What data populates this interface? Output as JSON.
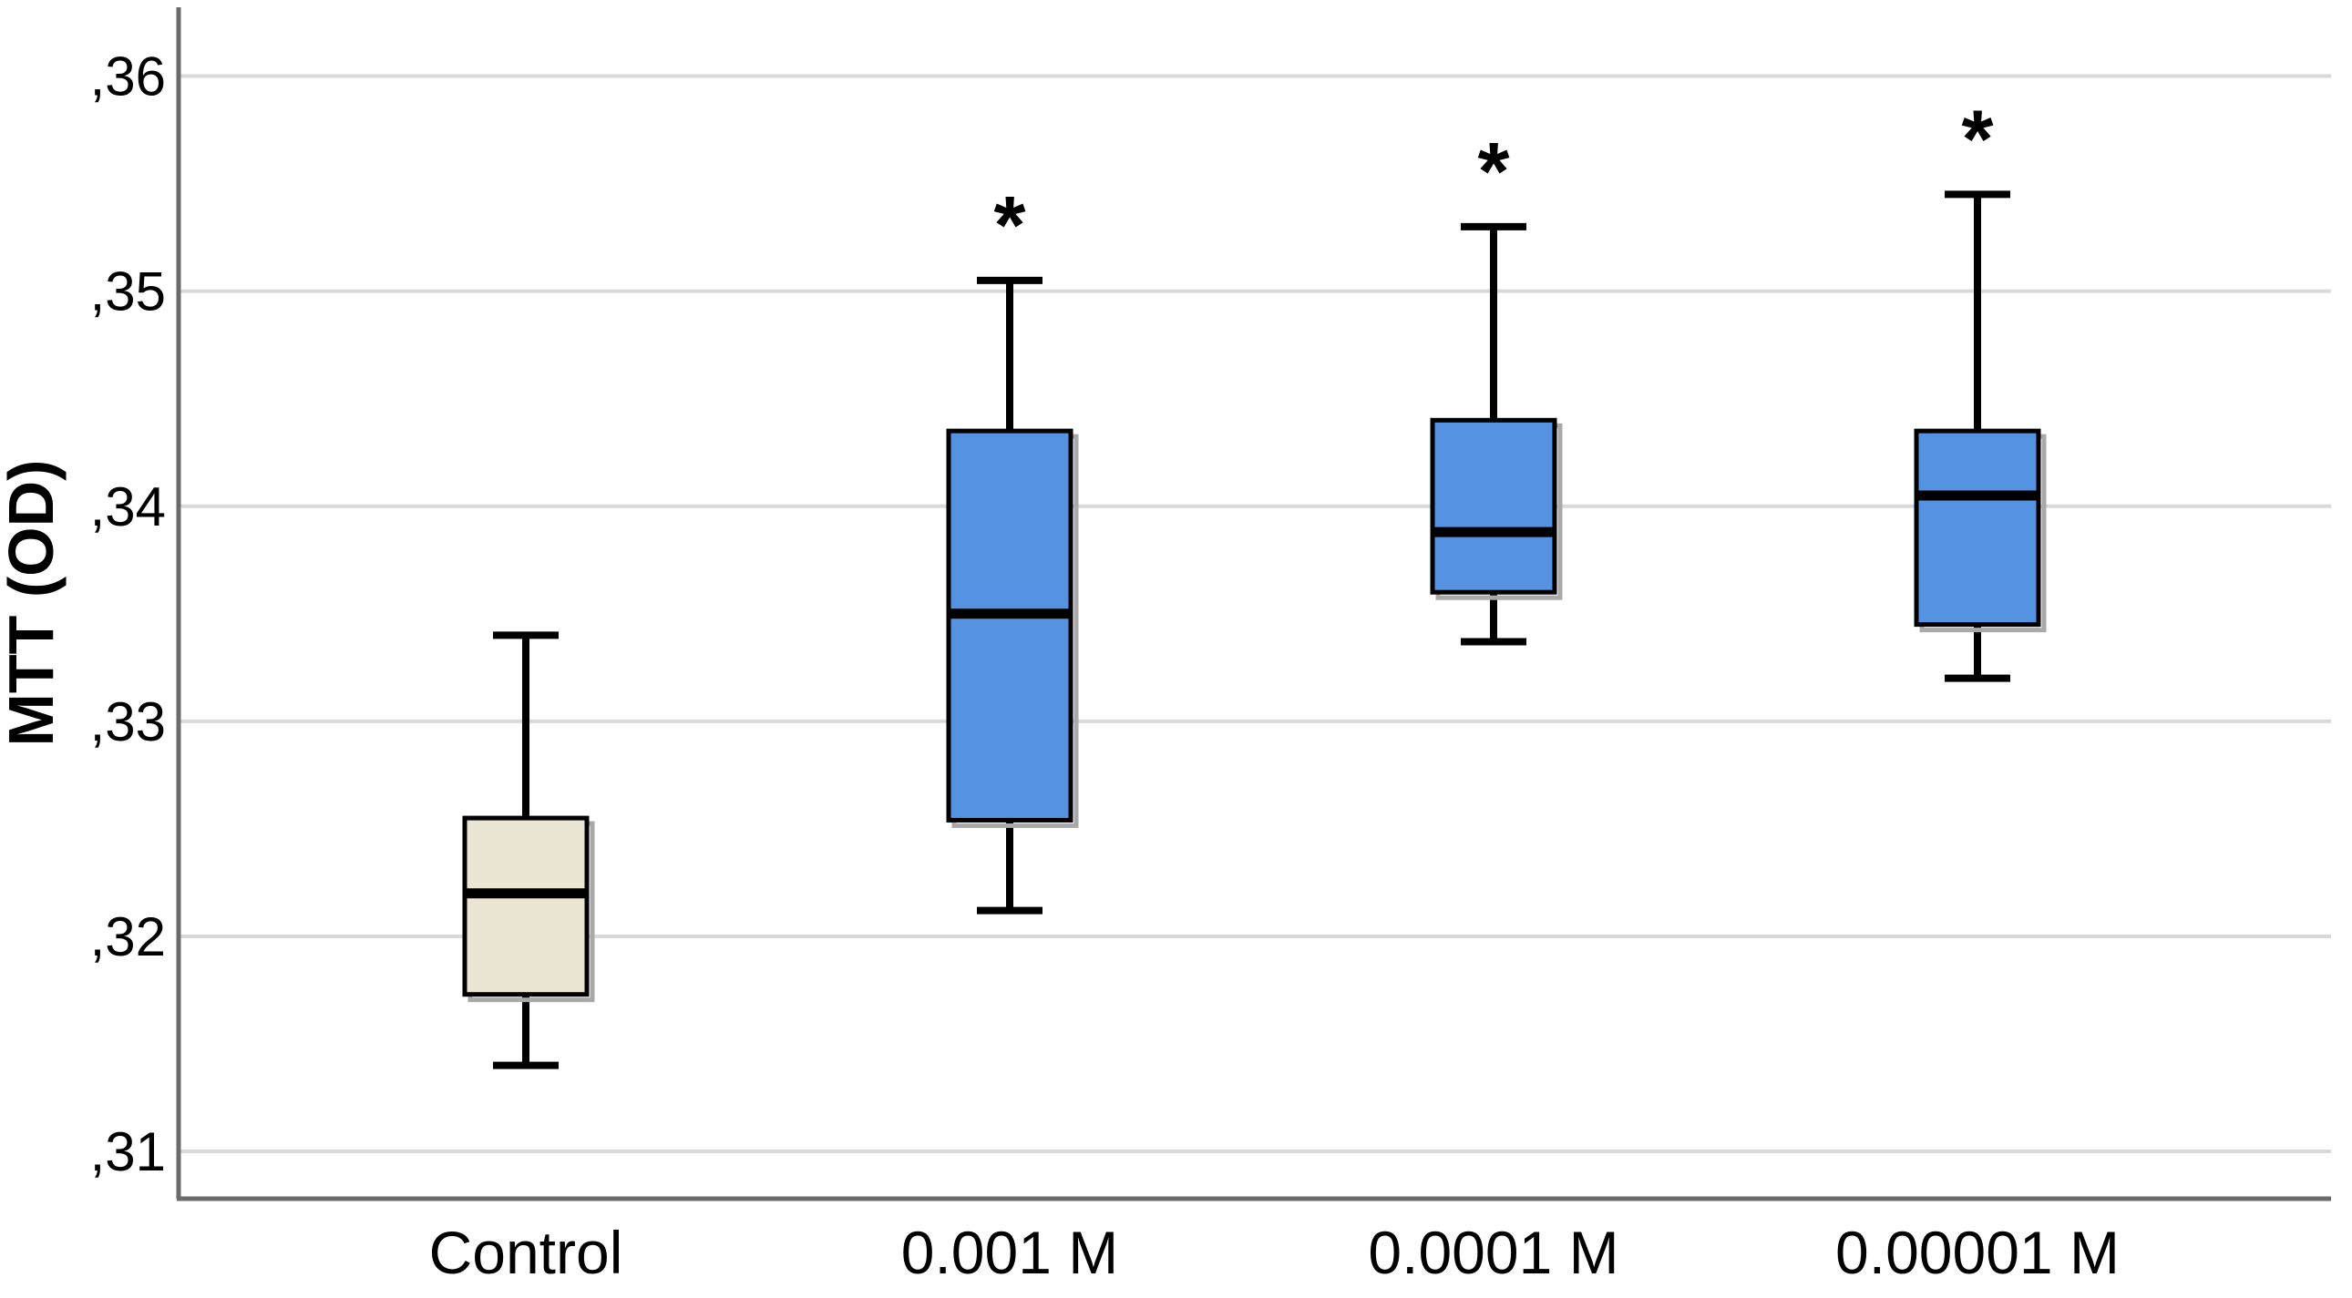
{
  "figure": {
    "background": "#ffffff"
  },
  "chart_data": {
    "type": "boxplot",
    "title": "",
    "xlabel": "",
    "ylabel": "MTT (OD)",
    "decimal_separator": ",",
    "grid": "horizontal",
    "legend": null,
    "ylim": [
      0.3078,
      0.3632
    ],
    "yticks": {
      "values": [
        0.31,
        0.32,
        0.33,
        0.34,
        0.35,
        0.36
      ],
      "labels": [
        ",31",
        ",32",
        ",33",
        ",34",
        ",35",
        ",36"
      ]
    },
    "categories": [
      "Control",
      "0.001 M",
      "0.0001 M",
      "0.00001 M"
    ],
    "boxes": [
      {
        "category": "Control",
        "min": 0.314,
        "q1": 0.3173,
        "median": 0.322,
        "q3": 0.3255,
        "max": 0.334,
        "significance": null,
        "fill": "#eae6d3"
      },
      {
        "category": "0.001 M",
        "min": 0.3212,
        "q1": 0.3254,
        "median": 0.335,
        "q3": 0.3435,
        "max": 0.3505,
        "significance": "*",
        "fill": "#5592e2"
      },
      {
        "category": "0.0001 M",
        "min": 0.3337,
        "q1": 0.336,
        "median": 0.3388,
        "q3": 0.344,
        "max": 0.353,
        "significance": "*",
        "fill": "#5592e2"
      },
      {
        "category": "0.00001 M",
        "min": 0.332,
        "q1": 0.3345,
        "median": 0.3405,
        "q3": 0.3435,
        "max": 0.3545,
        "significance": "*",
        "fill": "#5592e2"
      }
    ]
  },
  "style": {
    "grid_color": "#d9d9d9",
    "axis_color": "#6b6b6b",
    "box_border_color": "#000000",
    "box_shadow_color": "#a9a9a9",
    "median_color": "#000000",
    "whisker_color": "#000000",
    "text_color": "#000000"
  }
}
